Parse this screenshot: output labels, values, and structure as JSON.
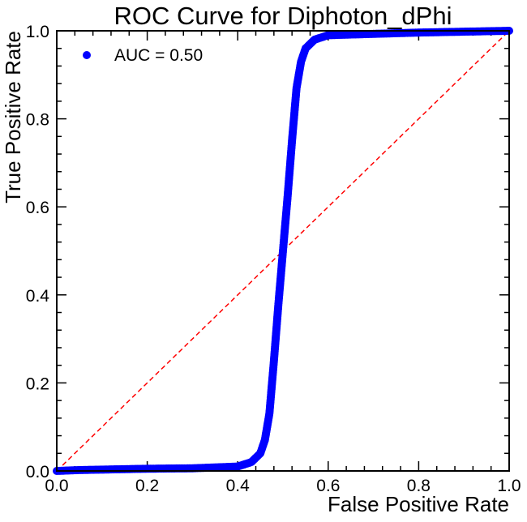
{
  "chart_data": {
    "type": "scatter",
    "title": "ROC Curve for Diphoton_dPhi",
    "xlabel": "False Positive Rate",
    "ylabel": "True Positive Rate",
    "xlim": [
      0.0,
      1.0
    ],
    "ylim": [
      0.0,
      1.0
    ],
    "x_ticks": [
      "0.0",
      "0.2",
      "0.4",
      "0.6",
      "0.8",
      "1.0"
    ],
    "y_ticks": [
      "0.0",
      "0.2",
      "0.4",
      "0.6",
      "0.8",
      "1.0"
    ],
    "grid": false,
    "legend_position": "top-left",
    "series": [
      {
        "name": "AUC = 0.50",
        "color": "#0000ff",
        "marker": "circle",
        "x": [
          0.0,
          0.05,
          0.1,
          0.2,
          0.3,
          0.4,
          0.43,
          0.45,
          0.46,
          0.47,
          0.48,
          0.49,
          0.5,
          0.51,
          0.52,
          0.53,
          0.54,
          0.55,
          0.57,
          0.6,
          0.7,
          0.8,
          0.9,
          1.0
        ],
        "y": [
          0.0,
          0.002,
          0.003,
          0.005,
          0.006,
          0.01,
          0.02,
          0.04,
          0.07,
          0.13,
          0.25,
          0.38,
          0.5,
          0.62,
          0.75,
          0.87,
          0.93,
          0.96,
          0.98,
          0.99,
          0.993,
          0.996,
          0.998,
          1.0
        ]
      },
      {
        "name": "",
        "color": "#ff0000",
        "style": "dashed",
        "x": [
          0.0,
          1.0
        ],
        "y": [
          0.0,
          1.0
        ]
      }
    ]
  }
}
